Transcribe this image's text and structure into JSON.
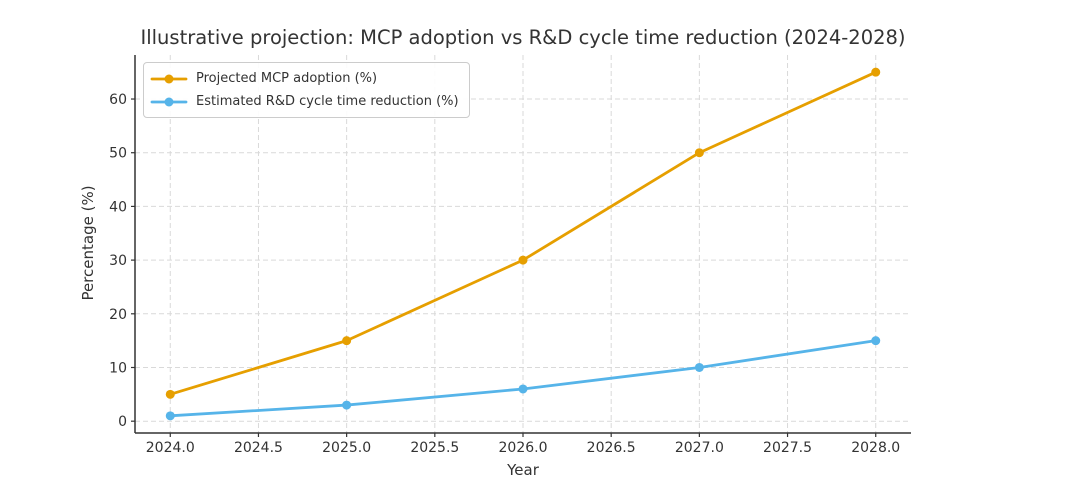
{
  "chart_data": {
    "type": "line",
    "title": "Illustrative projection: MCP adoption vs R&D cycle time reduction (2024-2028)",
    "xlabel": "Year",
    "ylabel": "Percentage (%)",
    "x": [
      2024,
      2025,
      2026,
      2027,
      2028
    ],
    "series": [
      {
        "name": "Projected MCP adoption (%)",
        "color": "#E69F00",
        "values": [
          5,
          15,
          30,
          50,
          65
        ]
      },
      {
        "name": "Estimated R&D cycle time reduction (%)",
        "color": "#56B4E9",
        "values": [
          1,
          3,
          6,
          10,
          15
        ]
      }
    ],
    "xticks": {
      "values": [
        2024.0,
        2024.5,
        2025.0,
        2025.5,
        2026.0,
        2026.5,
        2027.0,
        2027.5,
        2028.0
      ],
      "labels": [
        "2024.0",
        "2024.5",
        "2025.0",
        "2025.5",
        "2026.0",
        "2026.5",
        "2027.0",
        "2027.5",
        "2028.0"
      ]
    },
    "yticks": {
      "values": [
        0,
        10,
        20,
        30,
        40,
        50,
        60
      ],
      "labels": [
        "0",
        "10",
        "20",
        "30",
        "40",
        "50",
        "60"
      ]
    },
    "xlim": [
      2023.8,
      2028.2
    ],
    "ylim": [
      -2.2,
      68.2
    ],
    "grid": "dashed",
    "grid_color": "#d9d9d9",
    "spine_color": "#333333",
    "legend_position": "upper left"
  }
}
